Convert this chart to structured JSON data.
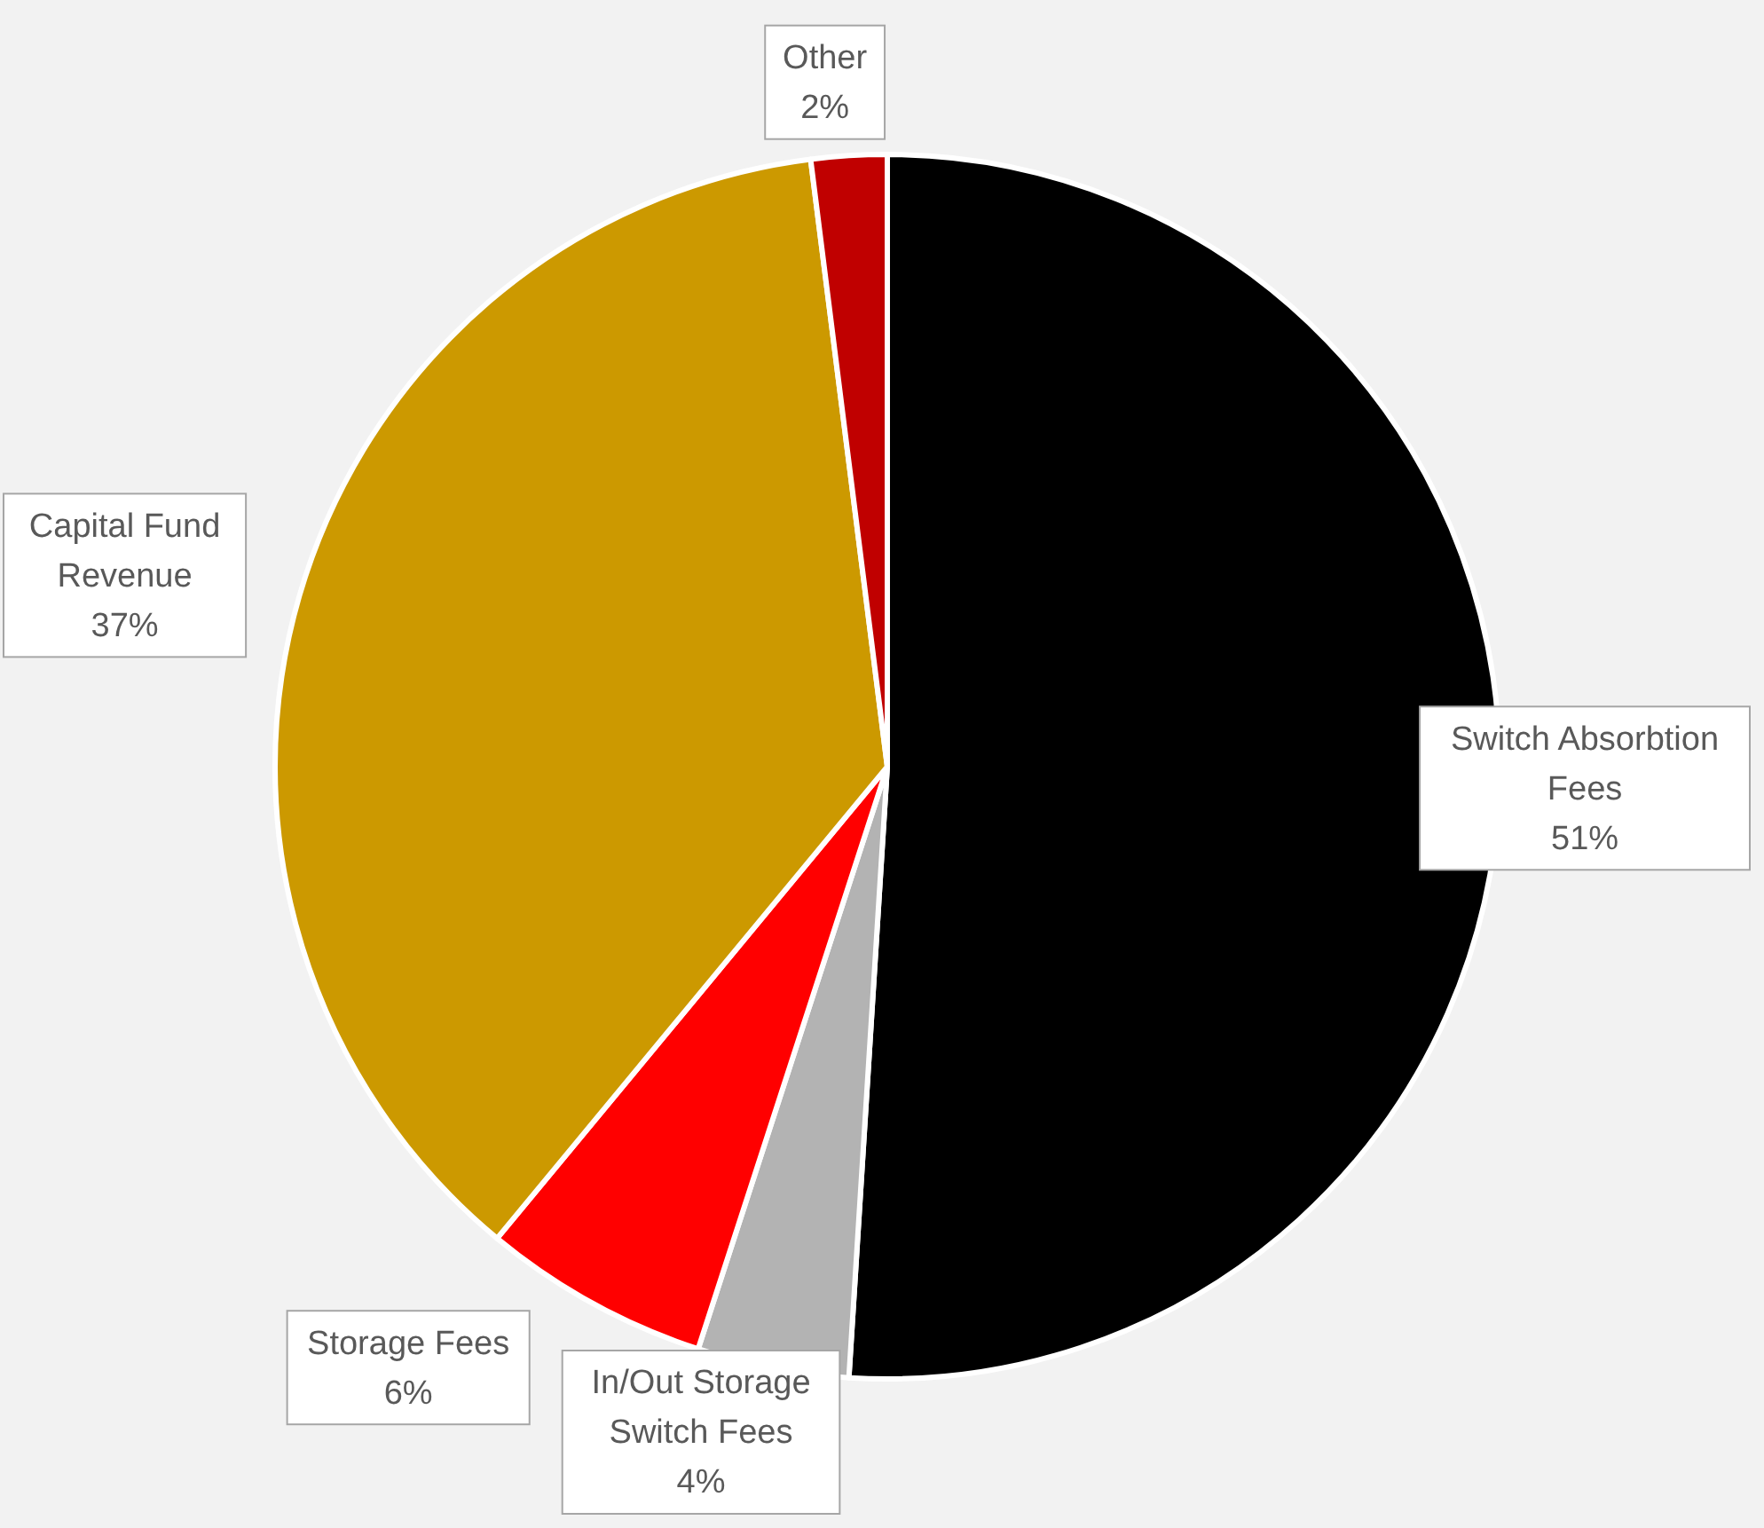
{
  "chart_data": {
    "type": "pie",
    "categories": [
      "Switch Absorbtion Fees",
      "In/Out Storage Switch Fees",
      "Storage Fees",
      "Capital Fund Revenue",
      "Other"
    ],
    "values": [
      51,
      4,
      6,
      37,
      2
    ],
    "colors": [
      "#000000",
      "#b3b3b3",
      "#ff0000",
      "#cc9900",
      "#c00000"
    ],
    "value_labels": [
      "51%",
      "4%",
      "6%",
      "37%",
      "2%"
    ]
  }
}
